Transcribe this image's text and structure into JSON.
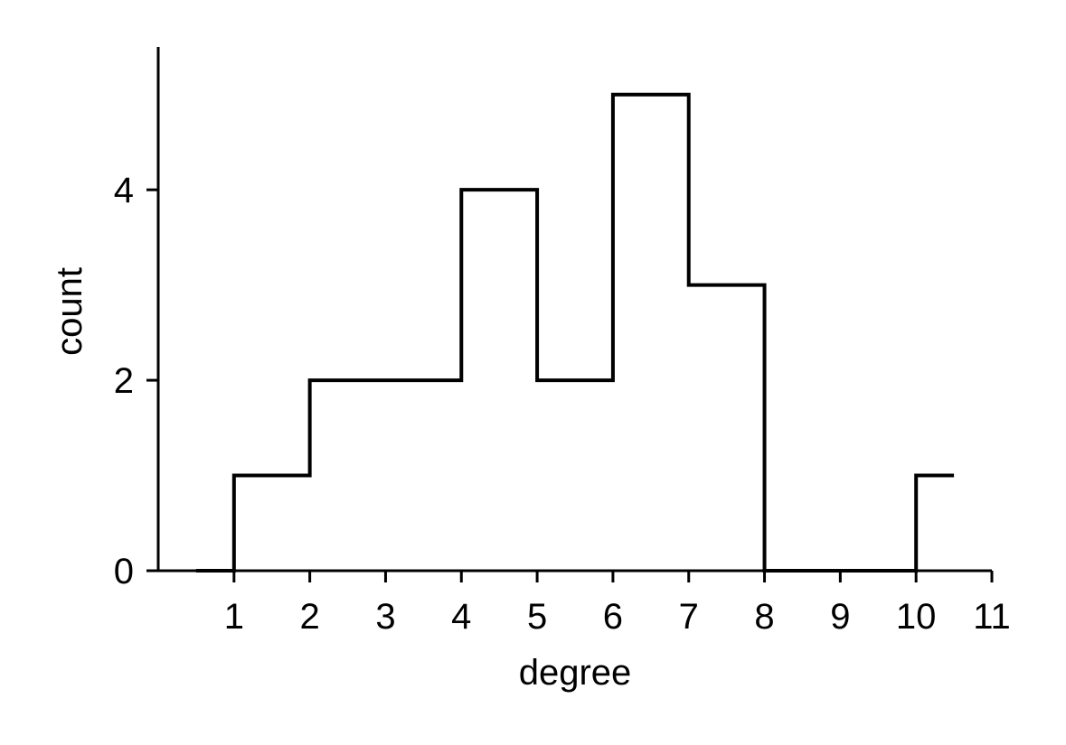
{
  "chart_data": {
    "type": "histogram-step",
    "title": "",
    "xlabel": "degree",
    "ylabel": "count",
    "xlim": [
      0.0,
      11.0
    ],
    "ylim": [
      0,
      5.5
    ],
    "x_ticks": [
      "1",
      "2",
      "3",
      "4",
      "5",
      "6",
      "7",
      "8",
      "9",
      "10",
      "11"
    ],
    "y_ticks": [
      "0",
      "2",
      "4"
    ],
    "grid": false,
    "line_color": "#000000",
    "series": [
      {
        "x": [
          0.5,
          1,
          2,
          3,
          4,
          5,
          6,
          7,
          8,
          9,
          10,
          10.5
        ],
        "y": [
          0,
          1,
          2,
          2,
          4,
          2,
          5,
          3,
          0,
          0,
          1,
          1
        ]
      }
    ]
  }
}
